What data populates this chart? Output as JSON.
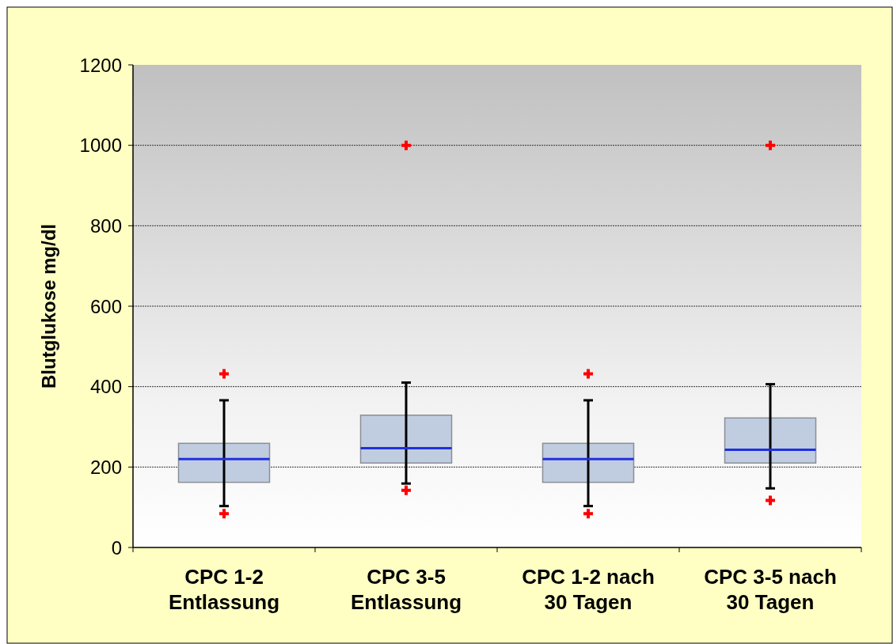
{
  "chart_data": {
    "type": "box",
    "ylabel": "Blutglukose mg/dl",
    "categories": [
      "CPC 1-2\nEntlassung",
      "CPC 3-5\nEntlassung",
      "CPC 1-2 nach\n30 Tagen",
      "CPC 3-5 nach\n30 Tagen"
    ],
    "color": "#c0cde0",
    "boxes": [
      {
        "low": 103,
        "q1": 162,
        "median": 220,
        "q3": 259,
        "high": 366,
        "outliers": [
          84,
          432
        ]
      },
      {
        "low": 159,
        "q1": 210,
        "median": 247,
        "q3": 329,
        "high": 410,
        "outliers": [
          142,
          1000
        ]
      },
      {
        "low": 103,
        "q1": 162,
        "median": 220,
        "q3": 259,
        "high": 366,
        "outliers": [
          84,
          432
        ]
      },
      {
        "low": 147,
        "q1": 210,
        "median": 243,
        "q3": 322,
        "high": 406,
        "outliers": [
          117,
          1000
        ]
      }
    ],
    "ylim": [
      0,
      1200
    ],
    "yticks": [
      0,
      200,
      400,
      600,
      800,
      1000,
      1200
    ],
    "grid": "y"
  }
}
